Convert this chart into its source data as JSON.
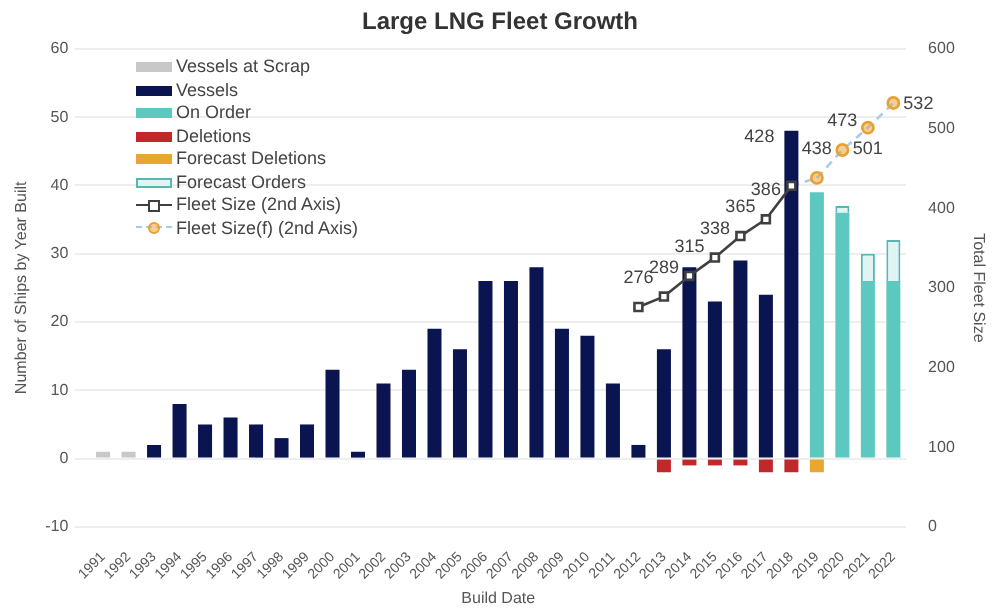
{
  "chart_data": {
    "type": "bar",
    "title": "Large LNG Fleet Growth",
    "xlabel": "Build Date",
    "ylabel": "Number of Ships by Year Built",
    "y2label": "Total Fleet Size",
    "categories": [
      "1991",
      "1992",
      "1993",
      "1994",
      "1995",
      "1996",
      "1997",
      "1998",
      "1999",
      "2000",
      "2001",
      "2002",
      "2003",
      "2004",
      "2005",
      "2006",
      "2007",
      "2008",
      "2009",
      "2010",
      "2011",
      "2012",
      "2013",
      "2014",
      "2015",
      "2016",
      "2017",
      "2018",
      "2019",
      "2020",
      "2021",
      "2022"
    ],
    "stacked": true,
    "ylim": [
      -10,
      60
    ],
    "yticks": [
      -10,
      0,
      10,
      20,
      30,
      40,
      50,
      60
    ],
    "y2lim": [
      0,
      600
    ],
    "y2ticks": [
      0,
      100,
      200,
      300,
      400,
      500,
      600
    ],
    "grid": "y",
    "legend": "top left",
    "series": [
      {
        "name": "Vessels at Scrap",
        "color": "#c8c8c8",
        "values": [
          1,
          1,
          null,
          null,
          null,
          null,
          null,
          null,
          null,
          null,
          null,
          null,
          null,
          null,
          null,
          null,
          null,
          null,
          null,
          null,
          null,
          null,
          null,
          null,
          null,
          null,
          null,
          null,
          null,
          null,
          null,
          null
        ]
      },
      {
        "name": "Vessels",
        "color": "#0a1450",
        "values": [
          null,
          null,
          2,
          8,
          5,
          6,
          5,
          3,
          5,
          13,
          1,
          11,
          13,
          19,
          16,
          26,
          26,
          28,
          19,
          18,
          11,
          2,
          16,
          28,
          23,
          29,
          24,
          48,
          null,
          null,
          null,
          null
        ]
      },
      {
        "name": "On Order",
        "color": "#5cc8c0",
        "values": [
          null,
          null,
          null,
          null,
          null,
          null,
          null,
          null,
          null,
          null,
          null,
          null,
          null,
          null,
          null,
          null,
          null,
          null,
          null,
          null,
          null,
          null,
          null,
          null,
          null,
          null,
          null,
          null,
          39,
          36,
          26,
          26
        ]
      },
      {
        "name": "Deletions",
        "color": "#c0282a",
        "values": [
          null,
          null,
          null,
          null,
          null,
          null,
          null,
          null,
          null,
          null,
          null,
          null,
          null,
          null,
          null,
          null,
          null,
          null,
          null,
          null,
          null,
          null,
          -2,
          -1,
          -1,
          -1,
          -2,
          -2,
          null,
          null,
          null,
          null
        ]
      },
      {
        "name": "Forecast Deletions",
        "color": "#e8a830",
        "values": [
          null,
          null,
          null,
          null,
          null,
          null,
          null,
          null,
          null,
          null,
          null,
          null,
          null,
          null,
          null,
          null,
          null,
          null,
          null,
          null,
          null,
          null,
          null,
          null,
          null,
          null,
          null,
          null,
          -2,
          null,
          null,
          null
        ]
      },
      {
        "name": "Forecast Orders",
        "color": "#dff4f3",
        "values": [
          null,
          null,
          null,
          null,
          null,
          null,
          null,
          null,
          null,
          null,
          null,
          null,
          null,
          null,
          null,
          null,
          null,
          null,
          null,
          null,
          null,
          null,
          null,
          null,
          null,
          null,
          null,
          null,
          null,
          1,
          4,
          6
        ]
      },
      {
        "name": "Fleet Size (2nd Axis)",
        "type": "line",
        "axis": "y2",
        "marker": "square",
        "line_style": "solid",
        "data_labels": true,
        "color": "#404040",
        "values": [
          null,
          null,
          null,
          null,
          null,
          null,
          null,
          null,
          null,
          null,
          null,
          null,
          null,
          null,
          null,
          null,
          null,
          null,
          null,
          null,
          null,
          276,
          289,
          315,
          338,
          365,
          386,
          428,
          null,
          null,
          null,
          null
        ]
      },
      {
        "name": "Fleet Size(f)  (2nd Axis)",
        "type": "line",
        "axis": "y2",
        "marker": "circle",
        "line_style": "dashed",
        "data_labels": true,
        "color": "#e8a030",
        "values": [
          null,
          null,
          null,
          null,
          null,
          null,
          null,
          null,
          null,
          null,
          null,
          null,
          null,
          null,
          null,
          null,
          null,
          null,
          null,
          null,
          null,
          null,
          null,
          null,
          null,
          null,
          null,
          null,
          438,
          473,
          501,
          532
        ]
      }
    ]
  }
}
